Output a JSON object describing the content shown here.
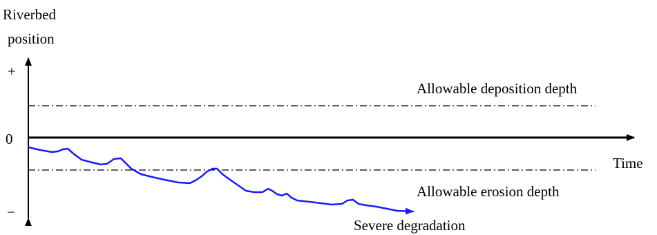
{
  "y_axis": {
    "label_line1": "Riverbed",
    "label_line2": "position",
    "plus_label": "+",
    "zero_label": "0",
    "minus_label": "−"
  },
  "x_axis": {
    "label": "Time"
  },
  "reference_lines": {
    "deposition": "Allowable deposition depth",
    "erosion": "Allowable erosion depth"
  },
  "curve": {
    "label": "Severe degradation",
    "color": "#1a1aff"
  },
  "colors": {
    "axis": "#000000",
    "reference": "#000000"
  }
}
